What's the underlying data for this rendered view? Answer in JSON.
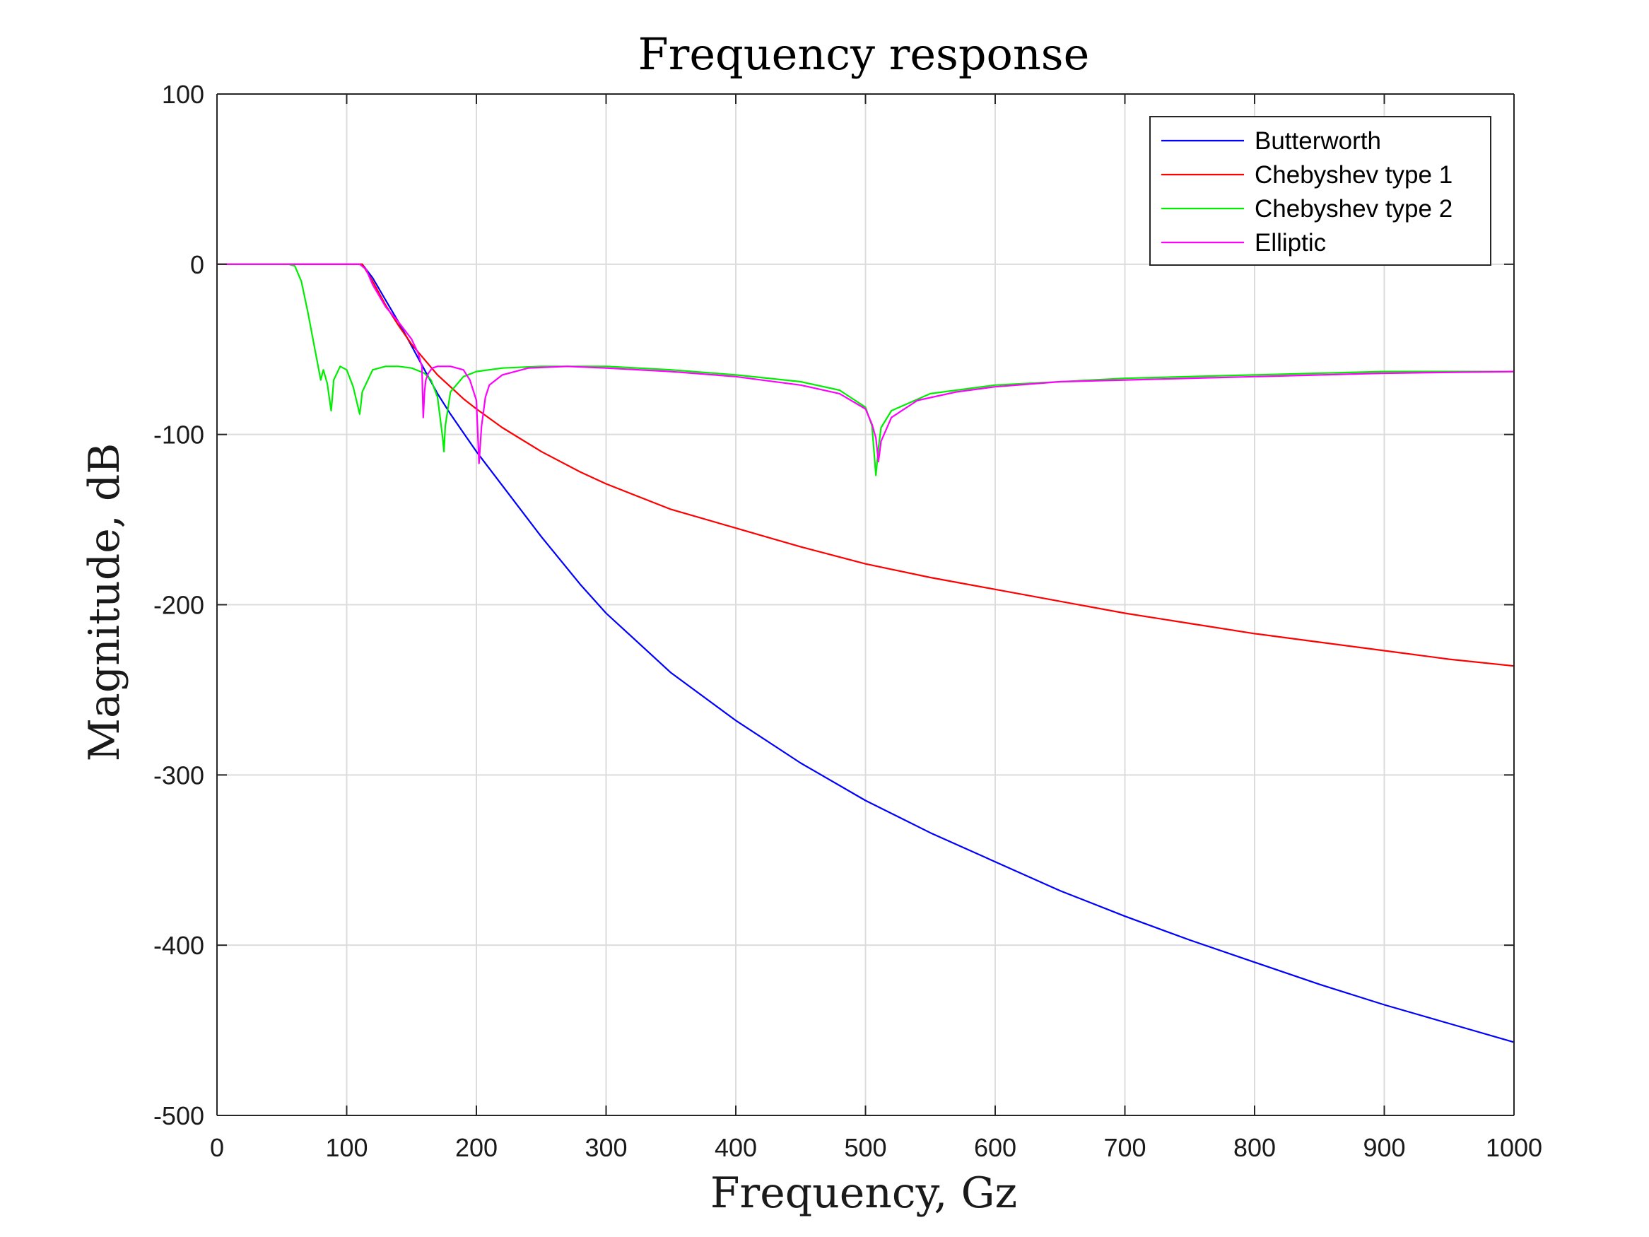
{
  "chart_data": {
    "type": "line",
    "title": "Frequency response",
    "xlabel": "Frequency, Gz",
    "ylabel": "Magnitude, dB",
    "xlim": [
      0,
      1000
    ],
    "ylim": [
      -500,
      100
    ],
    "xticks": [
      0,
      100,
      200,
      300,
      400,
      500,
      600,
      700,
      800,
      900,
      1000
    ],
    "yticks": [
      100,
      0,
      -100,
      -200,
      -300,
      -400,
      -500
    ],
    "xtick_labels": [
      "0",
      "100",
      "200",
      "300",
      "400",
      "500",
      "600",
      "700",
      "800",
      "900",
      "1000"
    ],
    "ytick_labels": [
      "100",
      "0",
      "-100",
      "-200",
      "-300",
      "-400",
      "-500"
    ],
    "grid": true,
    "legend_position": "top-right",
    "series": [
      {
        "name": "Butterworth",
        "color": "#0000ff",
        "x": [
          0,
          50,
          100,
          108,
          112,
          120,
          130,
          140,
          150,
          160,
          170,
          180,
          190,
          200,
          220,
          250,
          280,
          300,
          350,
          400,
          450,
          500,
          550,
          600,
          650,
          700,
          750,
          800,
          850,
          900,
          950,
          1000
        ],
        "y": [
          0,
          0,
          0,
          0,
          0,
          -8,
          -21,
          -34,
          -48,
          -62,
          -76,
          -88,
          -99,
          -110,
          -130,
          -160,
          -188,
          -205,
          -240,
          -268,
          -293,
          -315,
          -334,
          -351,
          -368,
          -383,
          -397,
          -410,
          -423,
          -435,
          -446,
          -457
        ]
      },
      {
        "name": "Chebyshev type 1",
        "color": "#ff0000",
        "x": [
          0,
          50,
          100,
          108,
          112,
          120,
          130,
          140,
          150,
          160,
          170,
          180,
          190,
          200,
          220,
          250,
          280,
          300,
          350,
          400,
          450,
          500,
          550,
          600,
          650,
          700,
          750,
          800,
          850,
          900,
          950,
          1000
        ],
        "y": [
          0,
          0,
          0,
          0,
          0,
          -10,
          -24,
          -36,
          -47,
          -56,
          -65,
          -72,
          -79,
          -85,
          -96,
          -110,
          -122,
          -129,
          -144,
          -155,
          -166,
          -176,
          -184,
          -191,
          -198,
          -205,
          -211,
          -217,
          -222,
          -227,
          -232,
          -236
        ]
      },
      {
        "name": "Chebyshev type 2",
        "color": "#00ee00",
        "x": [
          0,
          55,
          60,
          65,
          70,
          75,
          80,
          82,
          85,
          88,
          89,
          90,
          95,
          100,
          105,
          110,
          111,
          112,
          120,
          130,
          140,
          150,
          160,
          165,
          170,
          174,
          175,
          176,
          180,
          190,
          200,
          220,
          250,
          270,
          300,
          350,
          400,
          450,
          480,
          500,
          505,
          508,
          510,
          512,
          520,
          550,
          600,
          700,
          800,
          900,
          1000
        ],
        "y": [
          0,
          0,
          -1,
          -10,
          -28,
          -48,
          -68,
          -62,
          -70,
          -86,
          -78,
          -68,
          -60,
          -62,
          -72,
          -88,
          -82,
          -75,
          -62,
          -60,
          -60,
          -61,
          -64,
          -68,
          -78,
          -102,
          -110,
          -95,
          -75,
          -66,
          -63,
          -61,
          -60,
          -60,
          -60,
          -62,
          -65,
          -69,
          -74,
          -84,
          -95,
          -124,
          -108,
          -96,
          -86,
          -76,
          -71,
          -67,
          -65,
          -63,
          -63
        ]
      },
      {
        "name": "Elliptic",
        "color": "#ff00ff",
        "x": [
          0,
          50,
          100,
          110,
          115,
          120,
          130,
          140,
          150,
          155,
          158,
          159,
          160,
          161,
          163,
          166,
          170,
          180,
          190,
          195,
          200,
          202,
          204,
          207,
          210,
          220,
          240,
          270,
          300,
          350,
          400,
          450,
          480,
          500,
          505,
          508,
          510,
          512,
          520,
          540,
          570,
          600,
          650,
          700,
          800,
          900,
          1000
        ],
        "y": [
          0,
          0,
          0,
          0,
          -3,
          -12,
          -25,
          -34,
          -44,
          -52,
          -60,
          -90,
          -75,
          -68,
          -64,
          -61,
          -60,
          -60,
          -62,
          -68,
          -80,
          -117,
          -95,
          -78,
          -71,
          -65,
          -61,
          -60,
          -61,
          -63,
          -66,
          -71,
          -76,
          -85,
          -94,
          -102,
          -116,
          -104,
          -90,
          -80,
          -75,
          -72,
          -69,
          -68,
          -66,
          -64,
          -63
        ]
      }
    ]
  }
}
